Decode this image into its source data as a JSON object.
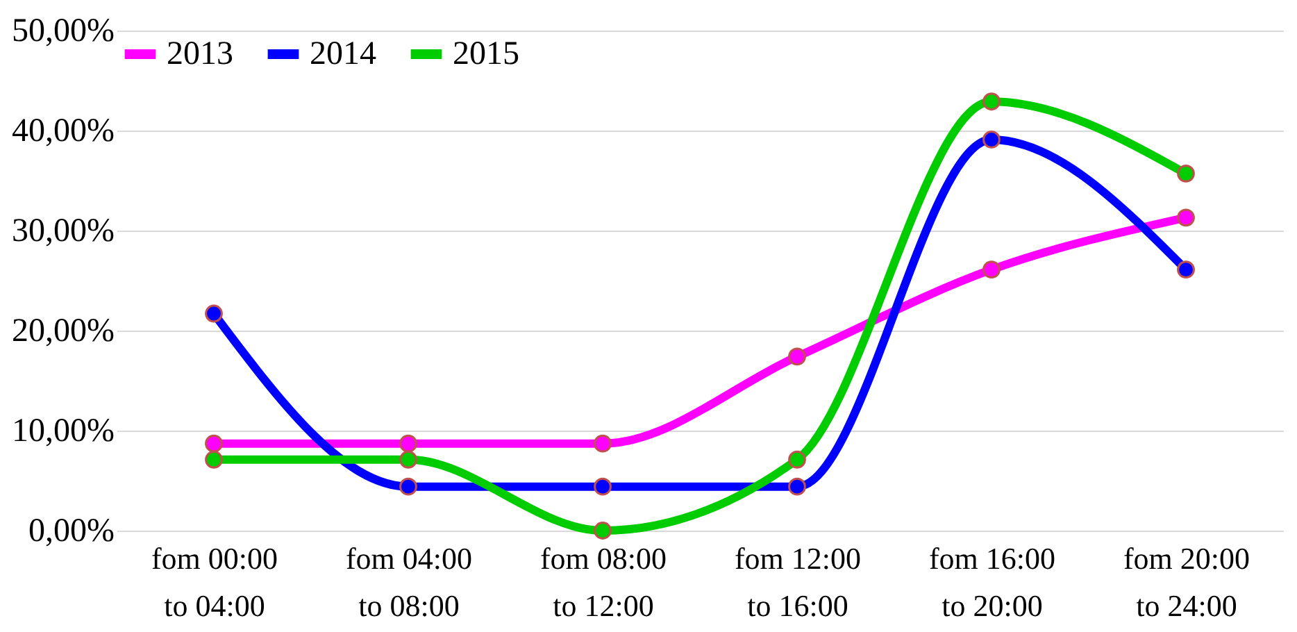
{
  "chart_data": {
    "type": "line",
    "categories": [
      "fom 00:00\nto 04:00",
      "fom 04:00\nto 08:00",
      "fom 08:00\nto 12:00",
      "fom 12:00\nto 16:00",
      "fom 16:00\nto 20:00",
      "fom 20:00\nto 24:00"
    ],
    "series": [
      {
        "name": "2013",
        "color": "#ff00ff",
        "values": [
          8.7,
          8.7,
          8.7,
          17.4,
          26.1,
          31.3
        ]
      },
      {
        "name": "2014",
        "color": "#0000ff",
        "values": [
          21.7,
          4.4,
          4.4,
          4.4,
          39.1,
          26.1
        ]
      },
      {
        "name": "2015",
        "color": "#00cc00",
        "values": [
          7.1,
          7.1,
          0,
          7.1,
          42.9,
          35.7
        ]
      }
    ],
    "ylim": [
      0,
      50
    ],
    "yticks": [
      {
        "value": 0,
        "label": "0,00%"
      },
      {
        "value": 10,
        "label": "10,00%"
      },
      {
        "value": 20,
        "label": "20,00%"
      },
      {
        "value": 30,
        "label": "30,00%"
      },
      {
        "value": 40,
        "label": "40,00%"
      },
      {
        "value": 50,
        "label": "50,00%"
      }
    ],
    "grid": "y",
    "legend": "top left",
    "marker": "circle",
    "line_style": "solid"
  }
}
